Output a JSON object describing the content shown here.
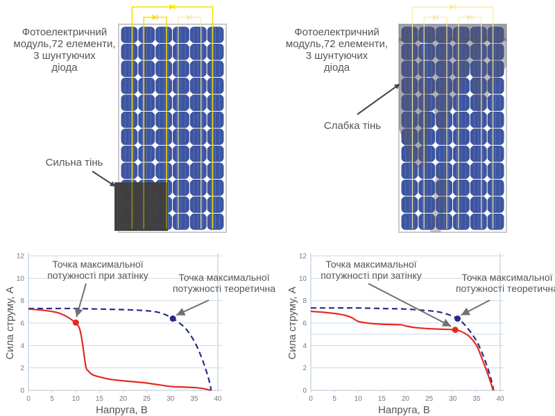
{
  "panels": [
    {
      "id": "left",
      "module_label": [
        "Фотоелектричний",
        "модуль,72 елементи,",
        "3 шунтуючих",
        "діода"
      ],
      "shade_label": "Сильна тінь",
      "shade_type": "strong",
      "cells_cols": 6,
      "cells_rows": 12
    },
    {
      "id": "right",
      "module_label": [
        "Фотоелектричний",
        "модуль,72 елементи,",
        "3 шунтуючих",
        "діода"
      ],
      "shade_label": "Слабка тінь",
      "shade_type": "weak",
      "cells_cols": 6,
      "cells_rows": 12
    }
  ],
  "colors": {
    "cell": "#3d55a0",
    "panel_frame": "#c8c8c8",
    "diode_wire": "#f5e000",
    "diode_wire_faded": "#f7eaa0",
    "strong_shade": "#3f3f40",
    "theoretical": "#2a2a8a",
    "shaded_curve": "#e8281e",
    "grid": "#c9d9e6",
    "arrow": "#707070"
  },
  "chart_data": [
    {
      "type": "line",
      "title": "",
      "xlabel": "Напруга, В",
      "ylabel": "Сила струму, А",
      "xlim": [
        0,
        40
      ],
      "ylim": [
        0,
        12
      ],
      "xticks": [
        0,
        5,
        10,
        15,
        20,
        25,
        30,
        35,
        40
      ],
      "yticks": [
        0,
        2,
        4,
        6,
        8,
        10,
        12
      ],
      "grid": true,
      "series": [
        {
          "name": "theoretical",
          "style": "dashed",
          "x": [
            0,
            5,
            10,
            15,
            20,
            25,
            28,
            30.5,
            33,
            35,
            36.5,
            37.5,
            38.2,
            38.6
          ],
          "y": [
            7.3,
            7.3,
            7.3,
            7.25,
            7.2,
            7.1,
            6.9,
            6.4,
            5.6,
            4.4,
            3.0,
            1.8,
            0.8,
            0
          ]
        },
        {
          "name": "shaded",
          "style": "solid",
          "x": [
            0,
            3,
            6,
            8,
            10,
            10.8,
            11.3,
            11.8,
            12.2,
            12.7,
            13.5,
            15,
            17,
            20,
            25,
            30,
            35,
            37,
            38.5
          ],
          "y": [
            7.25,
            7.15,
            6.95,
            6.6,
            6.0,
            5.5,
            4.5,
            3.0,
            2.0,
            1.7,
            1.4,
            1.2,
            1.0,
            0.85,
            0.65,
            0.35,
            0.25,
            0.15,
            0
          ]
        }
      ],
      "points": [
        {
          "name": "mpp-shaded",
          "x": 10,
          "y": 6.05,
          "label": "Точка максимальної потужності при затінку"
        },
        {
          "name": "mpp-theoretical",
          "x": 30.5,
          "y": 6.4,
          "label": "Точка максимальної потужності теоретична"
        }
      ],
      "annotations": [
        [
          "Точка максимальної",
          "потужності при затінку"
        ],
        [
          "Точка максимальної",
          "потужності теоретична"
        ]
      ]
    },
    {
      "type": "line",
      "title": "",
      "xlabel": "Напруга, В",
      "ylabel": "Сила струму, А",
      "xlim": [
        0,
        40
      ],
      "ylim": [
        0,
        12
      ],
      "xticks": [
        0,
        5,
        10,
        15,
        20,
        25,
        30,
        35,
        40
      ],
      "yticks": [
        0,
        2,
        4,
        6,
        8,
        10,
        12
      ],
      "extra_gridline": 5,
      "grid": true,
      "series": [
        {
          "name": "theoretical",
          "style": "dashed",
          "x": [
            0,
            5,
            10,
            15,
            20,
            25,
            28,
            31,
            33,
            35,
            36.5,
            37.5,
            38.2,
            38.6
          ],
          "y": [
            7.35,
            7.35,
            7.35,
            7.3,
            7.25,
            7.1,
            6.9,
            6.4,
            5.6,
            4.4,
            3.0,
            1.8,
            0.8,
            0
          ]
        },
        {
          "name": "shaded",
          "style": "solid",
          "x": [
            0,
            3,
            6,
            8,
            9,
            10,
            12,
            15,
            19,
            20,
            22,
            25,
            28,
            30.5,
            32,
            33.5,
            35,
            36,
            37,
            38,
            38.5
          ],
          "y": [
            7.05,
            6.95,
            6.8,
            6.6,
            6.4,
            6.15,
            6.0,
            5.9,
            5.85,
            5.75,
            5.6,
            5.5,
            5.45,
            5.4,
            5.2,
            4.8,
            4.0,
            3.0,
            1.9,
            0.7,
            0
          ]
        }
      ],
      "points": [
        {
          "name": "mpp-shaded",
          "x": 30.5,
          "y": 5.4,
          "label": "Точка максимальної потужності при затінку"
        },
        {
          "name": "mpp-theoretical",
          "x": 31,
          "y": 6.4,
          "label": "Точка максимальної потужності теоретична"
        }
      ],
      "annotations": [
        [
          "Точка максимальної",
          "потужності при затінку"
        ],
        [
          "Точка максимальної",
          "потужності теоретична"
        ]
      ]
    }
  ]
}
